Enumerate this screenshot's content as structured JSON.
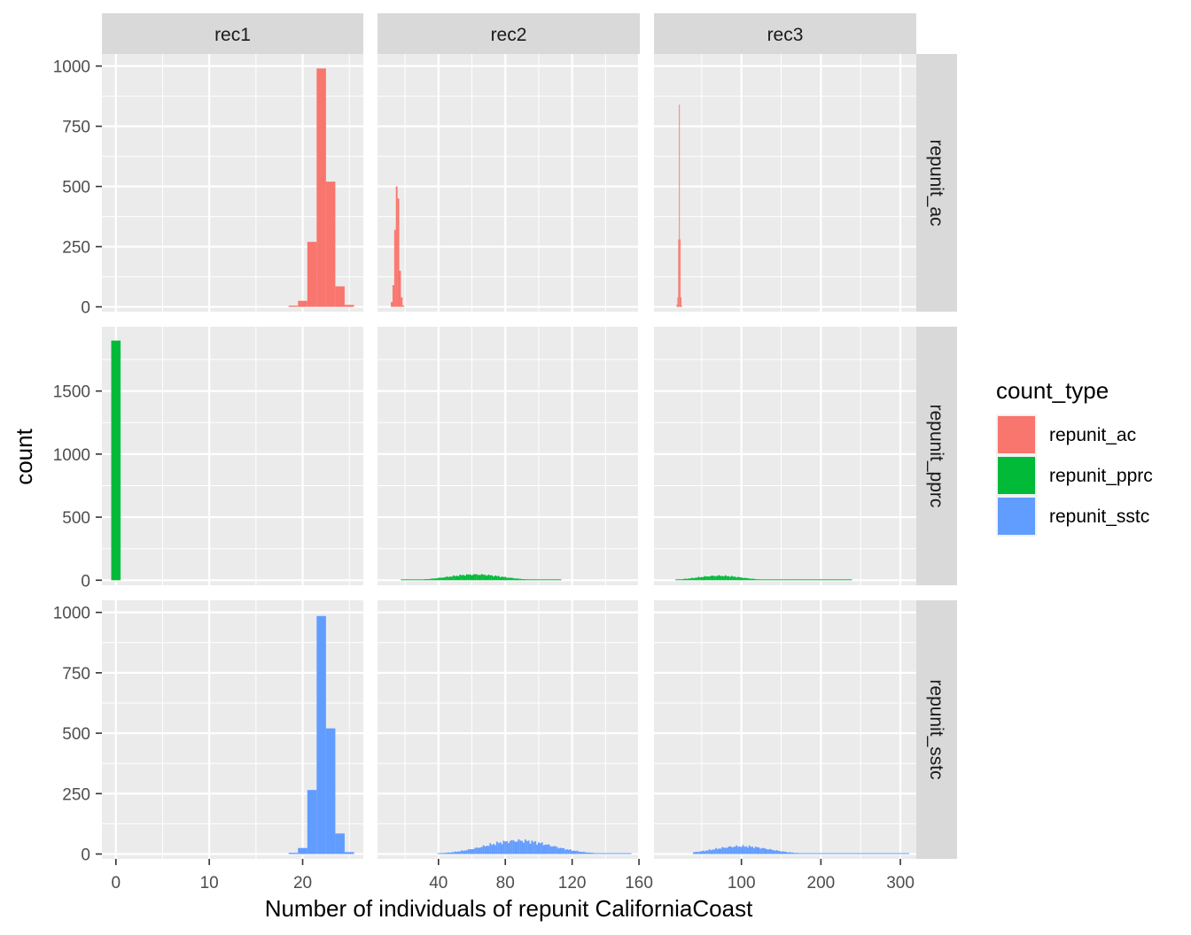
{
  "chart_data": {
    "type": "bar",
    "xlabel": "Number of individuals of repunit CaliforniaCoast",
    "ylabel": "count",
    "grid": true,
    "legend": {
      "title": "count_type",
      "placement": "right",
      "items": [
        {
          "label": "repunit_ac",
          "color": "#F8766D"
        },
        {
          "label": "repunit_pprc",
          "color": "#00BA38"
        },
        {
          "label": "repunit_sstc",
          "color": "#619CFF"
        }
      ]
    },
    "columns": [
      {
        "label": "rec1",
        "xlim": [
          -1.5,
          26.5
        ],
        "xticks": [
          0,
          10,
          20
        ],
        "xminor": [
          5,
          15,
          25
        ]
      },
      {
        "label": "rec2",
        "xlim": [
          3.5,
          160.5
        ],
        "xticks": [
          40,
          80,
          120,
          160
        ],
        "xminor": [
          20,
          60,
          100,
          140
        ]
      },
      {
        "label": "rec3",
        "xlim": [
          -10,
          320
        ],
        "xticks": [
          100,
          200,
          300
        ],
        "xminor": [
          50,
          150,
          250
        ]
      }
    ],
    "rows": [
      {
        "label": "repunit_ac",
        "ylim": [
          -20,
          1050
        ],
        "yticks": [
          0,
          250,
          500,
          750,
          1000
        ],
        "yminor": [
          125,
          375,
          625,
          875
        ]
      },
      {
        "label": "repunit_pprc",
        "ylim": [
          -40,
          2010
        ],
        "yticks": [
          0,
          500,
          1000,
          1500
        ],
        "yminor": [
          250,
          750,
          1250,
          1750
        ]
      },
      {
        "label": "repunit_sstc",
        "ylim": [
          -20,
          1050
        ],
        "yticks": [
          0,
          250,
          500,
          750,
          1000
        ],
        "yminor": [
          125,
          375,
          625,
          875
        ]
      }
    ],
    "panels": [
      {
        "column": "rec1",
        "row": "repunit_ac",
        "series": "repunit_ac",
        "binwidth": 1,
        "x": [
          19,
          20,
          21,
          22,
          23,
          24,
          25
        ],
        "values": [
          5,
          25,
          270,
          990,
          520,
          85,
          8
        ]
      },
      {
        "column": "rec2",
        "row": "repunit_ac",
        "series": "repunit_ac",
        "binwidth": 1,
        "x": [
          12,
          13,
          14,
          15,
          16,
          17,
          18,
          19
        ],
        "values": [
          20,
          90,
          320,
          500,
          450,
          150,
          40,
          5
        ]
      },
      {
        "column": "rec3",
        "row": "repunit_ac",
        "series": "repunit_ac",
        "binwidth": 1,
        "x": [
          19,
          20,
          21,
          22,
          23,
          24,
          25
        ],
        "values": [
          10,
          40,
          280,
          840,
          280,
          40,
          5
        ]
      },
      {
        "column": "rec1",
        "row": "repunit_pprc",
        "series": "repunit_pprc",
        "binwidth": 1,
        "x": [
          0
        ],
        "values": [
          1900
        ]
      },
      {
        "column": "rec2",
        "row": "repunit_pprc",
        "series": "repunit_pprc",
        "binwidth": 1,
        "curve": {
          "from": 18,
          "to": 113,
          "peak_x": 62,
          "sigma": 16,
          "peak": 45
        }
      },
      {
        "column": "rec3",
        "row": "repunit_pprc",
        "series": "repunit_pprc",
        "binwidth": 2,
        "curve": {
          "from": 18,
          "to": 238,
          "peak_x": 72,
          "sigma": 28,
          "peak": 35
        }
      },
      {
        "column": "rec1",
        "row": "repunit_sstc",
        "series": "repunit_sstc",
        "binwidth": 1,
        "x": [
          19,
          20,
          21,
          22,
          23,
          24,
          25
        ],
        "values": [
          5,
          25,
          265,
          985,
          520,
          85,
          8
        ]
      },
      {
        "column": "rec2",
        "row": "repunit_sstc",
        "series": "repunit_sstc",
        "binwidth": 1,
        "curve": {
          "from": 40,
          "to": 155,
          "peak_x": 88,
          "sigma": 20,
          "peak": 55
        }
      },
      {
        "column": "rec3",
        "row": "repunit_sstc",
        "series": "repunit_sstc",
        "binwidth": 2,
        "curve": {
          "from": 40,
          "to": 310,
          "peak_x": 100,
          "sigma": 35,
          "peak": 32
        }
      }
    ]
  }
}
